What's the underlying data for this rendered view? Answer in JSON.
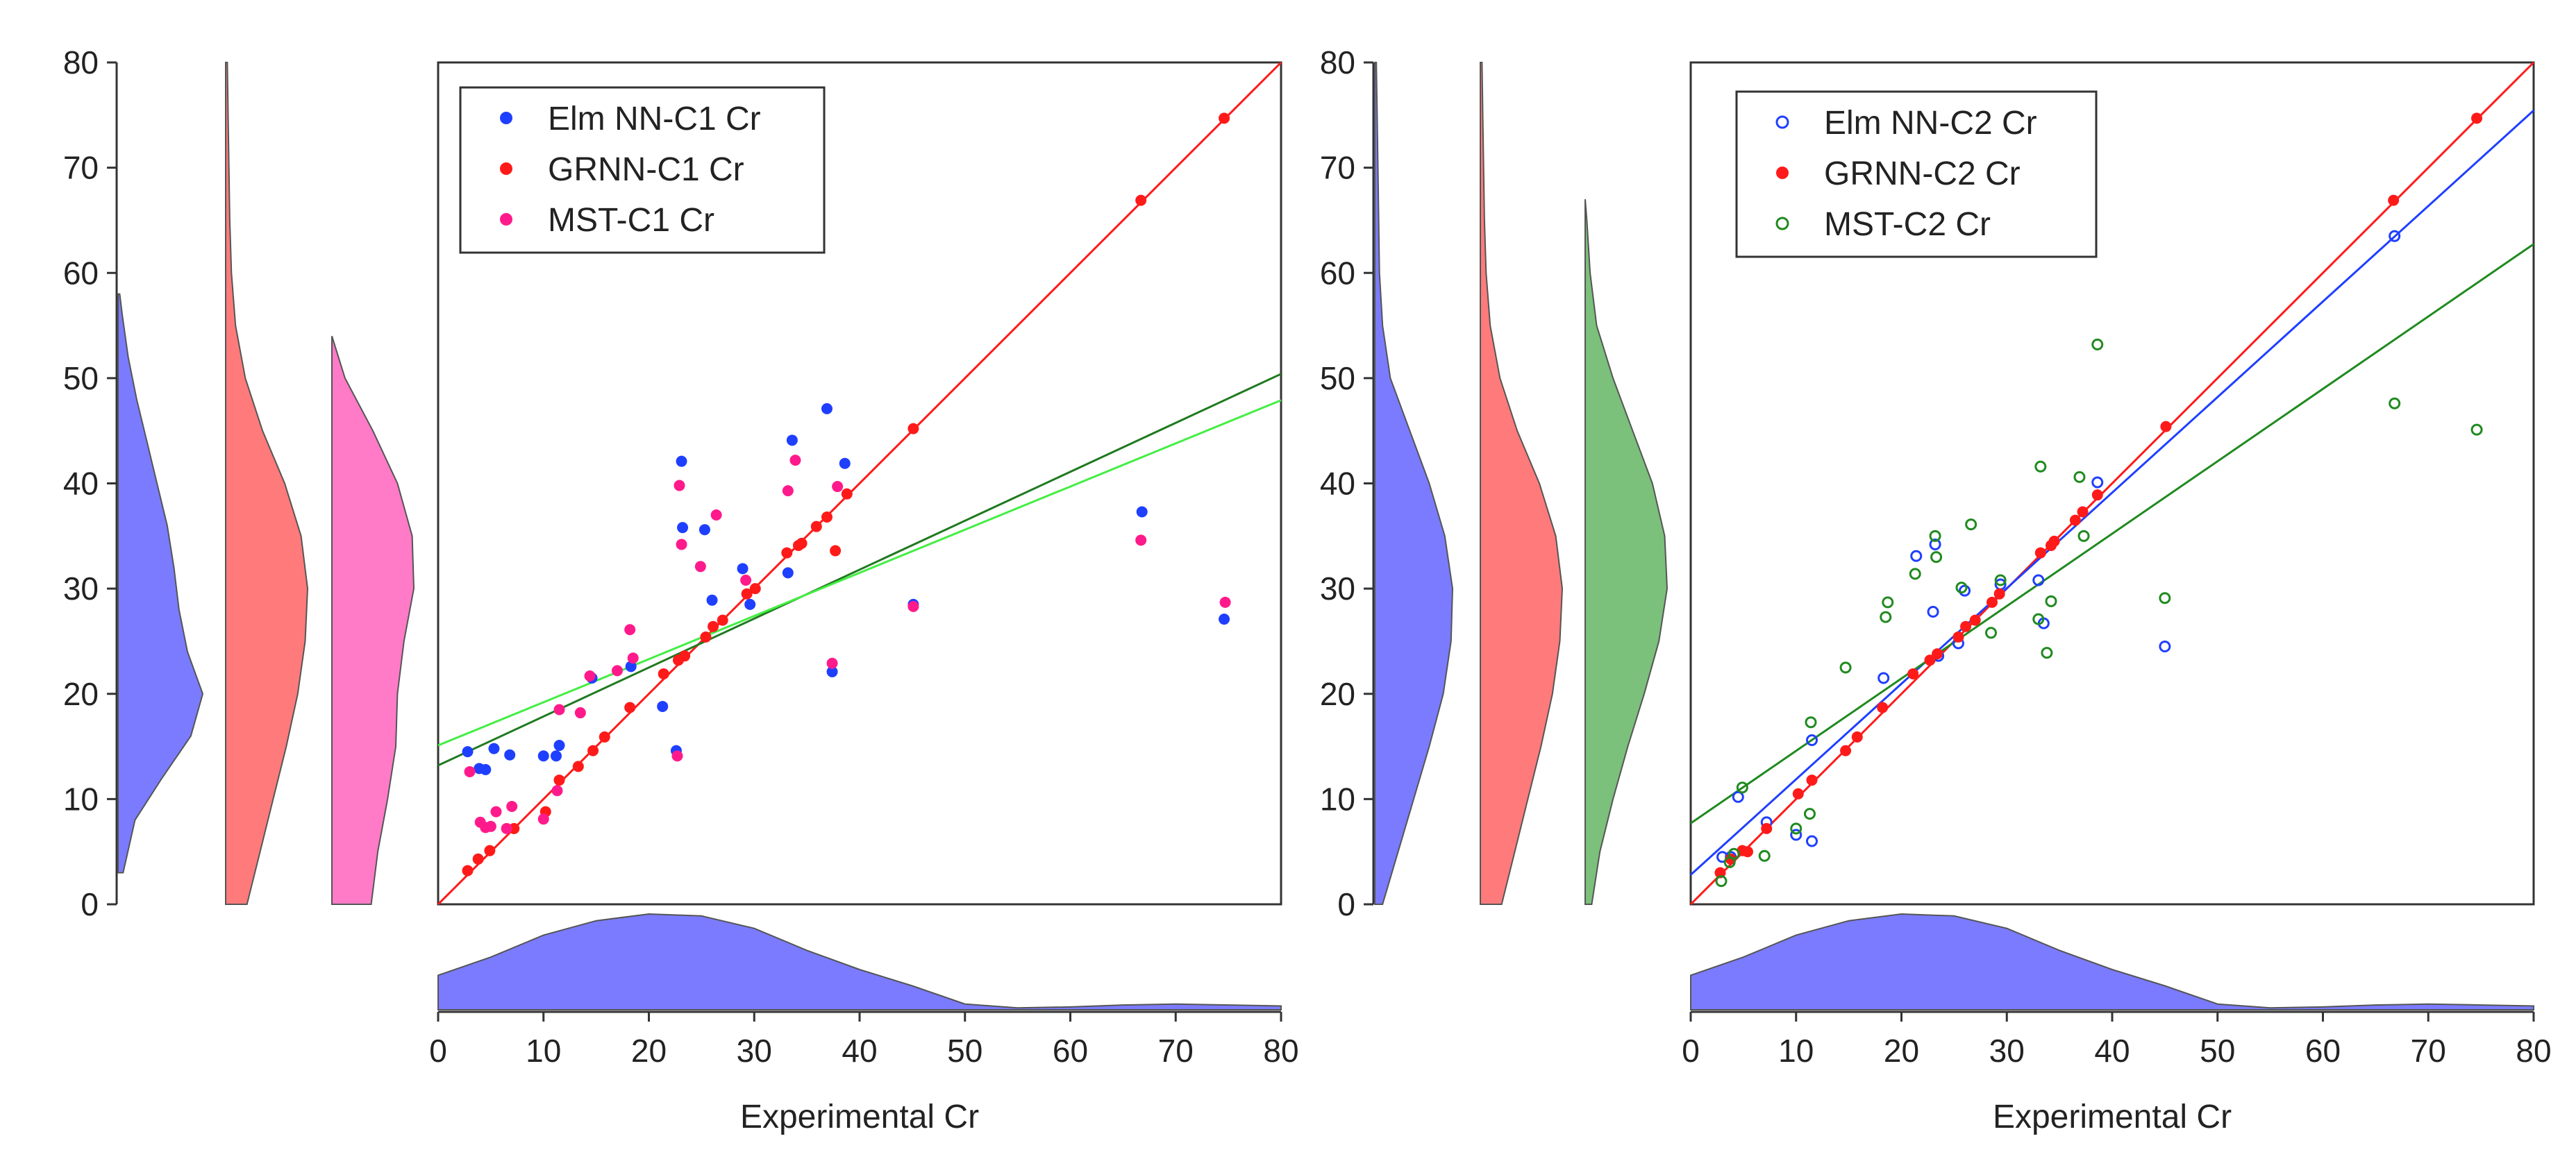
{
  "figure_colors": {
    "elm": "#1f3fff",
    "grnn": "#ff1a1a",
    "mst1": "#ff1a8c",
    "mst2": "#1f8a1f",
    "dens_blue": "#7b7bff",
    "dens_red": "#ff7b7b",
    "dens_pink": "#ff7bc8",
    "dens_green": "#7bc07b",
    "fit_dark_green": "#1f7a1f",
    "fit_light_green": "#44ee44"
  },
  "chart_data": [
    {
      "type": "scatter",
      "id": "panel-c1",
      "title": "",
      "xlabel": "Experimental Cr",
      "ylabel": "",
      "xlim": [
        0,
        80
      ],
      "ylim": [
        0,
        80
      ],
      "x_ticks": [
        "0",
        "10",
        "20",
        "30",
        "40",
        "50",
        "60",
        "70",
        "80"
      ],
      "y_ticks": [
        "0",
        "10",
        "20",
        "30",
        "40",
        "50",
        "60",
        "70",
        "80"
      ],
      "grid": false,
      "legend_position": "top-left",
      "series": [
        {
          "name": "Elm NN-C1 Cr",
          "marker": "filled",
          "color": "#1f3fff",
          "points": [
            [
              2.8,
              14.5
            ],
            [
              3.9,
              12.9
            ],
            [
              4.5,
              12.8
            ],
            [
              5.3,
              14.8
            ],
            [
              6.8,
              14.2
            ],
            [
              10,
              14.1
            ],
            [
              11.2,
              14.1
            ],
            [
              11.5,
              15.1
            ],
            [
              14.6,
              21.5
            ],
            [
              18.3,
              22.6
            ],
            [
              21.3,
              18.8
            ],
            [
              22.6,
              14.6
            ],
            [
              23.1,
              42.1
            ],
            [
              23.2,
              35.8
            ],
            [
              25.3,
              35.6
            ],
            [
              26,
              28.9
            ],
            [
              28.9,
              31.9
            ],
            [
              29.6,
              28.5
            ],
            [
              33.2,
              31.5
            ],
            [
              33.6,
              44.1
            ],
            [
              36.9,
              47.1
            ],
            [
              37.4,
              22.1
            ],
            [
              38.6,
              41.9
            ],
            [
              45.1,
              28.5
            ],
            [
              66.8,
              37.3
            ],
            [
              74.6,
              27.1
            ]
          ]
        },
        {
          "name": "GRNN-C1 Cr",
          "marker": "filled",
          "color": "#ff1a1a",
          "points": [
            [
              2.8,
              3.2
            ],
            [
              3.8,
              4.3
            ],
            [
              4.9,
              5.1
            ],
            [
              7.2,
              7.2
            ],
            [
              10.2,
              8.8
            ],
            [
              11.5,
              11.8
            ],
            [
              13.3,
              13.1
            ],
            [
              14.7,
              14.6
            ],
            [
              15.8,
              15.9
            ],
            [
              18.2,
              18.7
            ],
            [
              21.4,
              21.9
            ],
            [
              22.8,
              23.2
            ],
            [
              23.4,
              23.6
            ],
            [
              25.4,
              25.4
            ],
            [
              26.1,
              26.4
            ],
            [
              27,
              27
            ],
            [
              29.3,
              29.5
            ],
            [
              30.1,
              30
            ],
            [
              33.1,
              33.4
            ],
            [
              34.2,
              34.1
            ],
            [
              34.5,
              34.3
            ],
            [
              35.9,
              35.9
            ],
            [
              36.9,
              36.8
            ],
            [
              37.7,
              33.6
            ],
            [
              38.8,
              39
            ],
            [
              45.1,
              45.2
            ],
            [
              66.7,
              66.9
            ],
            [
              74.6,
              74.7
            ]
          ]
        },
        {
          "name": "MST-C1 Cr",
          "marker": "filled",
          "color": "#ff1a8c",
          "points": [
            [
              3,
              12.6
            ],
            [
              4,
              7.8
            ],
            [
              4.5,
              7.3
            ],
            [
              5,
              7.4
            ],
            [
              5.5,
              8.8
            ],
            [
              6.5,
              7.2
            ],
            [
              7,
              9.3
            ],
            [
              10,
              8.1
            ],
            [
              11.3,
              10.8
            ],
            [
              11.5,
              18.5
            ],
            [
              13.5,
              18.2
            ],
            [
              14.4,
              21.7
            ],
            [
              17,
              22.2
            ],
            [
              18.2,
              26.1
            ],
            [
              18.5,
              23.4
            ],
            [
              22.7,
              14.1
            ],
            [
              22.9,
              39.8
            ],
            [
              23.1,
              34.2
            ],
            [
              24.9,
              32.1
            ],
            [
              26.4,
              37
            ],
            [
              29.2,
              30.8
            ],
            [
              33.2,
              39.3
            ],
            [
              33.9,
              42.2
            ],
            [
              37.4,
              22.9
            ],
            [
              37.9,
              39.7
            ],
            [
              45.1,
              28.3
            ],
            [
              66.7,
              34.6
            ],
            [
              74.7,
              28.7
            ]
          ]
        }
      ],
      "fit_lines": [
        {
          "name": "GRNN-C1 fit",
          "color": "#ff1a1a",
          "intercept": 0,
          "slope": 1.0
        },
        {
          "name": "MST-C1 fit",
          "color": "#1f7a1f",
          "intercept": 13.2,
          "slope": 0.465
        },
        {
          "name": "Elm NN-C1 fit",
          "color": "#44ee44",
          "intercept": 15.1,
          "slope": 0.41
        }
      ]
    },
    {
      "type": "scatter",
      "id": "panel-c2",
      "title": "",
      "xlabel": "Experimental Cr",
      "ylabel": "",
      "xlim": [
        0,
        80
      ],
      "ylim": [
        0,
        80
      ],
      "x_ticks": [
        "0",
        "10",
        "20",
        "30",
        "40",
        "50",
        "60",
        "70",
        "80"
      ],
      "y_ticks": [
        "0",
        "10",
        "20",
        "30",
        "40",
        "50",
        "60",
        "70",
        "80"
      ],
      "grid": false,
      "legend_position": "top-left",
      "series": [
        {
          "name": "Elm NN-C2 Cr",
          "marker": "open",
          "color": "#1f3fff",
          "points": [
            [
              3,
              4.5
            ],
            [
              3.8,
              4.5
            ],
            [
              4.5,
              10.2
            ],
            [
              7.2,
              7.8
            ],
            [
              10,
              6.6
            ],
            [
              11.5,
              15.6
            ],
            [
              11.5,
              6
            ],
            [
              18.3,
              21.5
            ],
            [
              21.4,
              33.1
            ],
            [
              23,
              27.8
            ],
            [
              23.2,
              34.2
            ],
            [
              23.5,
              23.6
            ],
            [
              25.4,
              24.8
            ],
            [
              26,
              29.8
            ],
            [
              29.4,
              30.4
            ],
            [
              33,
              30.8
            ],
            [
              33.5,
              26.7
            ],
            [
              38.6,
              40.1
            ],
            [
              45,
              24.5
            ],
            [
              66.8,
              63.5
            ]
          ]
        },
        {
          "name": "GRNN-C2 Cr",
          "marker": "filled",
          "color": "#ff1a1a",
          "points": [
            [
              2.8,
              3
            ],
            [
              3.8,
              4.3
            ],
            [
              4.9,
              5.1
            ],
            [
              5.4,
              5
            ],
            [
              7.2,
              7.2
            ],
            [
              10.2,
              10.5
            ],
            [
              11.5,
              11.8
            ],
            [
              14.7,
              14.6
            ],
            [
              15.8,
              15.9
            ],
            [
              18.2,
              18.7
            ],
            [
              21.1,
              21.9
            ],
            [
              22.7,
              23.2
            ],
            [
              23.4,
              23.8
            ],
            [
              25.4,
              25.4
            ],
            [
              26.1,
              26.4
            ],
            [
              27,
              27
            ],
            [
              28.6,
              28.7
            ],
            [
              29.3,
              29.5
            ],
            [
              33.2,
              33.4
            ],
            [
              34.2,
              34.1
            ],
            [
              34.5,
              34.5
            ],
            [
              36.5,
              36.5
            ],
            [
              37.2,
              37.3
            ],
            [
              38.6,
              38.9
            ],
            [
              45.1,
              45.4
            ],
            [
              66.7,
              66.9
            ],
            [
              74.6,
              74.7
            ]
          ]
        },
        {
          "name": "MST-C2 Cr",
          "marker": "open",
          "color": "#1f8a1f",
          "points": [
            [
              2.9,
              2.2
            ],
            [
              3.7,
              4
            ],
            [
              4.1,
              4.8
            ],
            [
              4.9,
              11.1
            ],
            [
              7,
              4.6
            ],
            [
              10,
              7.2
            ],
            [
              11.3,
              8.6
            ],
            [
              11.4,
              17.3
            ],
            [
              14.7,
              22.5
            ],
            [
              18.5,
              27.3
            ],
            [
              18.7,
              28.7
            ],
            [
              21.3,
              31.4
            ],
            [
              23.2,
              35
            ],
            [
              23.3,
              33
            ],
            [
              25.7,
              30.1
            ],
            [
              26.6,
              36.1
            ],
            [
              28.5,
              25.8
            ],
            [
              29.4,
              30.8
            ],
            [
              33,
              27.1
            ],
            [
              33.2,
              41.6
            ],
            [
              33.8,
              23.9
            ],
            [
              34.2,
              28.8
            ],
            [
              36.9,
              40.6
            ],
            [
              37.3,
              35
            ],
            [
              38.6,
              53.2
            ],
            [
              45,
              29.1
            ],
            [
              66.8,
              47.6
            ],
            [
              74.6,
              45.1
            ]
          ]
        }
      ],
      "fit_lines": [
        {
          "name": "GRNN-C2 fit",
          "color": "#ff1a1a",
          "intercept": 0,
          "slope": 1.0
        },
        {
          "name": "Elm NN-C2 fit",
          "color": "#1f3fff",
          "intercept": 2.8,
          "slope": 0.908
        },
        {
          "name": "MST-C2 fit",
          "color": "#1f8a1f",
          "intercept": 7.7,
          "slope": 0.688
        }
      ]
    }
  ],
  "marginal_densities": {
    "x_density": {
      "color": "#7b7bff",
      "x": [
        0,
        5,
        10,
        15,
        20,
        25,
        30,
        35,
        40,
        45,
        50,
        55,
        60,
        65,
        70,
        75,
        80
      ],
      "density": [
        0.36,
        0.55,
        0.78,
        0.93,
        1.0,
        0.98,
        0.85,
        0.62,
        0.42,
        0.25,
        0.06,
        0.02,
        0.03,
        0.05,
        0.06,
        0.05,
        0.04
      ]
    },
    "y_left": [
      {
        "name": "Elm NN-C1 Cr",
        "color": "#7b7bff",
        "y": [
          3,
          8,
          12,
          16,
          20,
          24,
          28,
          32,
          36,
          40,
          44,
          48,
          52,
          56,
          58
        ],
        "density": [
          0.06,
          0.2,
          0.52,
          0.86,
          1.0,
          0.82,
          0.72,
          0.66,
          0.58,
          0.46,
          0.34,
          0.22,
          0.12,
          0.05,
          0.02
        ]
      },
      {
        "name": "GRNN-C1 Cr",
        "color": "#ff7b7b",
        "y": [
          0,
          5,
          10,
          15,
          20,
          25,
          30,
          35,
          40,
          45,
          50,
          55,
          60,
          65,
          70,
          75,
          80
        ],
        "density": [
          0.26,
          0.42,
          0.58,
          0.74,
          0.88,
          0.97,
          1.0,
          0.92,
          0.72,
          0.45,
          0.24,
          0.12,
          0.07,
          0.05,
          0.04,
          0.03,
          0.02
        ]
      },
      {
        "name": "MST-C1 Cr",
        "color": "#ff7bc8",
        "y": [
          0,
          5,
          10,
          15,
          20,
          25,
          30,
          35,
          40,
          45,
          50,
          54
        ],
        "density": [
          0.48,
          0.56,
          0.68,
          0.78,
          0.8,
          0.88,
          1.0,
          0.98,
          0.8,
          0.5,
          0.16,
          0.0
        ]
      }
    ],
    "y_right": [
      {
        "name": "Elm NN-C2 Cr",
        "color": "#7b7bff",
        "y": [
          0,
          5,
          10,
          15,
          20,
          25,
          30,
          35,
          40,
          45,
          50,
          55,
          60,
          65,
          70,
          75,
          80
        ],
        "density": [
          0.1,
          0.3,
          0.5,
          0.7,
          0.88,
          0.98,
          1.0,
          0.9,
          0.7,
          0.45,
          0.2,
          0.1,
          0.06,
          0.05,
          0.04,
          0.03,
          0.02
        ]
      },
      {
        "name": "GRNN-C2 Cr",
        "color": "#ff7b7b",
        "y": [
          0,
          5,
          10,
          15,
          20,
          25,
          30,
          35,
          40,
          45,
          50,
          55,
          60,
          65,
          70,
          75,
          80
        ],
        "density": [
          0.26,
          0.42,
          0.58,
          0.74,
          0.88,
          0.97,
          1.0,
          0.92,
          0.72,
          0.45,
          0.24,
          0.12,
          0.07,
          0.05,
          0.04,
          0.03,
          0.02
        ]
      },
      {
        "name": "MST-C2 Cr",
        "color": "#7bc07b",
        "y": [
          0,
          5,
          10,
          15,
          20,
          25,
          30,
          35,
          40,
          45,
          50,
          55,
          60,
          65,
          67
        ],
        "density": [
          0.08,
          0.18,
          0.34,
          0.52,
          0.72,
          0.9,
          1.0,
          0.97,
          0.82,
          0.58,
          0.34,
          0.14,
          0.06,
          0.02,
          0.0
        ]
      }
    ]
  }
}
